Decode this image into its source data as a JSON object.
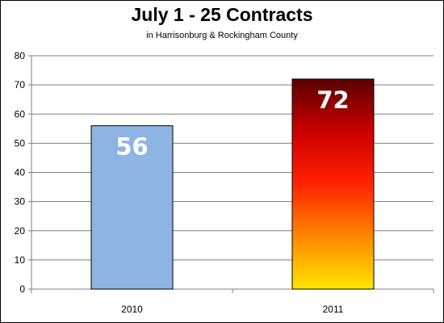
{
  "chart_data": {
    "type": "bar",
    "title": "July 1 - 25 Contracts",
    "subtitle": "in Harrisonburg & Rockingham County",
    "categories": [
      "2010",
      "2011"
    ],
    "values": [
      56,
      72
    ],
    "data_labels": [
      "56",
      "72"
    ],
    "ylim": [
      0,
      80
    ],
    "yticks": [
      "0",
      "10",
      "20",
      "30",
      "40",
      "50",
      "60",
      "70",
      "80"
    ],
    "xlabel": "",
    "ylabel": "",
    "grid": true,
    "legend": "none",
    "colors": {
      "bar_2010": "#8eb4e3",
      "bar_2011_gradient": [
        "#5a0000",
        "#cc0000",
        "#ff2200",
        "#ff8800",
        "#ffe600"
      ],
      "gridline": "#7f7f7f",
      "axis": "#7f7f7f"
    }
  }
}
